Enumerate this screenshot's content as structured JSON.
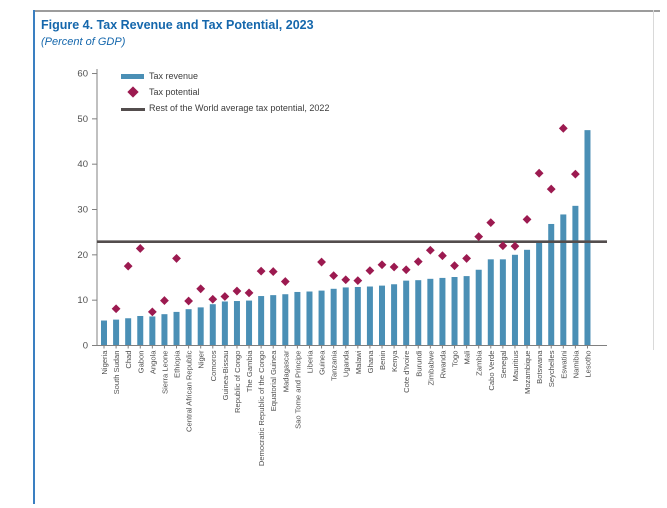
{
  "page": {
    "title": "Figure 4. Tax Revenue and Tax Potential, 2023",
    "subtitle": "(Percent of GDP)"
  },
  "legend": {
    "tax_revenue_label": "Tax revenue",
    "tax_potential_label": "Tax potential",
    "reference_label": "Rest of the World average tax potential, 2022"
  },
  "colors": {
    "title_blue": "#1567ac",
    "bar_blue": "#4a8fb5",
    "diamond_magenta": "#9c1a50",
    "reference_line": "#534d4d",
    "axis_gray": "#808080",
    "tick_text": "#4f4f4f"
  },
  "chart_data": {
    "type": "bar",
    "title": "Figure 4. Tax Revenue and Tax Potential, 2023",
    "subtitle": "(Percent of GDP)",
    "ylabel": "Percent of GDP",
    "ylim": [
      0,
      60
    ],
    "yticks": [
      0,
      10,
      20,
      30,
      40,
      50,
      60
    ],
    "grid": false,
    "legend_position": "top-left",
    "reference_line": {
      "label": "Rest of the World average tax potential, 2022",
      "value": 22.8
    },
    "categories": [
      "Nigeria",
      "South Sudan",
      "Chad",
      "Gabon",
      "Angola",
      "Sierra Leone",
      "Ethiopia",
      "Central African Republic",
      "Niger",
      "Comoros",
      "Guinea-Bissau",
      "Republic of Congo",
      "The Gambia",
      "Democratic Republic of the Congo",
      "Equatorial Guinea",
      "Madagascar",
      "Sao Tome and Principe",
      "Liberia",
      "Guinea",
      "Tanzania",
      "Uganda",
      "Malawi",
      "Ghana",
      "Benin",
      "Kenya",
      "Cote d'Ivoire",
      "Burundi",
      "Zimbabwe",
      "Rwanda",
      "Togo",
      "Mali",
      "Zambia",
      "Cabo Verde",
      "Senegal",
      "Mauritius",
      "Mozambique",
      "Botswana",
      "Seychelles",
      "Eswatini",
      "Namibia",
      "Lesotho"
    ],
    "series": [
      {
        "name": "Tax revenue",
        "type": "bar",
        "values": [
          5.4,
          5.6,
          5.9,
          6.4,
          6.3,
          6.8,
          7.3,
          7.9,
          8.3,
          9.0,
          9.6,
          9.7,
          9.8,
          10.8,
          11.0,
          11.2,
          11.7,
          11.8,
          12.0,
          12.4,
          12.7,
          12.8,
          12.9,
          13.1,
          13.4,
          14.2,
          14.3,
          14.6,
          14.8,
          15.0,
          15.2,
          16.6,
          18.9,
          18.9,
          19.9,
          21.0,
          22.6,
          26.7,
          28.8,
          30.7,
          47.4
        ]
      },
      {
        "name": "Tax potential",
        "type": "scatter",
        "values": [
          null,
          8.0,
          17.4,
          21.3,
          7.3,
          9.8,
          19.1,
          9.7,
          12.4,
          10.1,
          10.7,
          11.9,
          11.5,
          16.3,
          16.2,
          14.0,
          null,
          null,
          18.3,
          15.3,
          14.4,
          14.2,
          16.4,
          17.7,
          17.2,
          16.6,
          18.4,
          20.9,
          19.7,
          17.5,
          19.1,
          23.9,
          27.0,
          21.9,
          21.8,
          27.7,
          37.9,
          34.4,
          47.8,
          37.7,
          null
        ]
      }
    ]
  }
}
